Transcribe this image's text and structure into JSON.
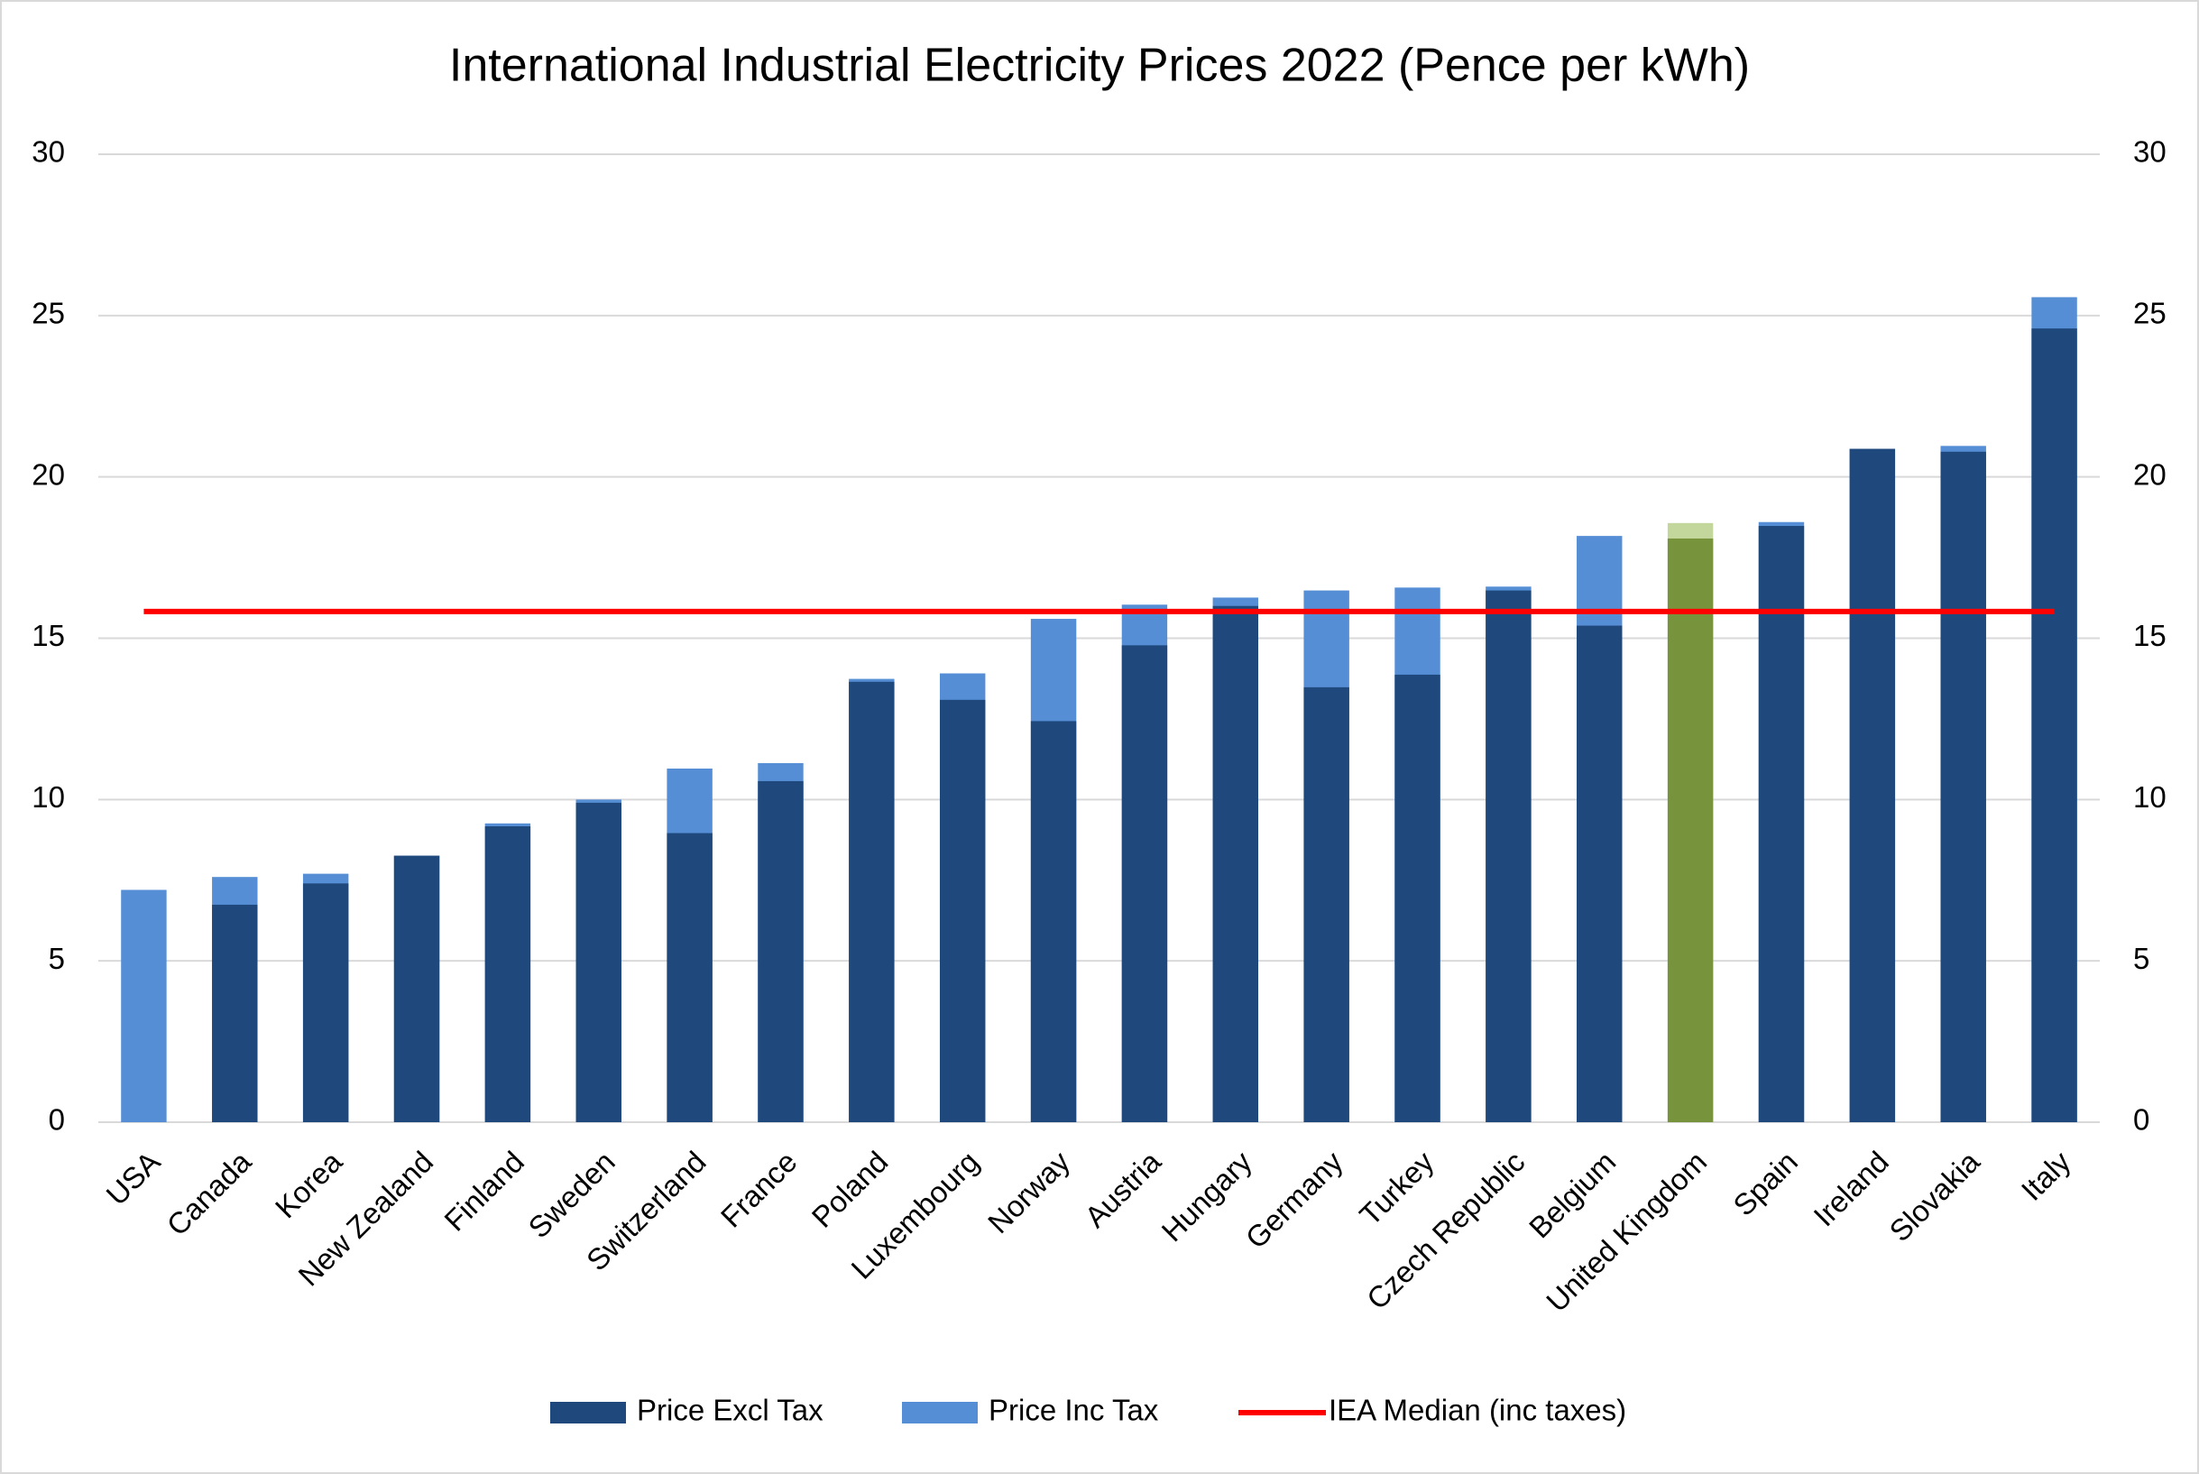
{
  "chart_data": {
    "type": "bar",
    "title": "International Industrial Electricity Prices 2022 (Pence per kWh)",
    "categories": [
      "USA",
      "Canada",
      "Korea",
      "New Zealand",
      "Finland",
      "Sweden",
      "Switzerland",
      "France",
      "Poland",
      "Luxembourg",
      "Norway",
      "Austria",
      "Hungary",
      "Germany",
      "Turkey",
      "Czech Republic",
      "Belgium",
      "United Kingdom",
      "Spain",
      "Ireland",
      "Slovakia",
      "Italy"
    ],
    "series": [
      {
        "name": "Price Inc Tax",
        "color": "#558ed5",
        "highlight_color": "#c3d69b",
        "values": [
          7.2,
          7.6,
          7.7,
          8.26,
          9.26,
          10.0,
          10.96,
          11.13,
          13.74,
          13.91,
          15.6,
          16.04,
          16.26,
          16.48,
          16.57,
          16.6,
          18.17,
          18.57,
          18.6,
          20.87,
          20.96,
          25.57
        ]
      },
      {
        "name": "Price Excl Tax",
        "color": "#1f497d",
        "highlight_color": "#77933c",
        "values": [
          null,
          6.74,
          7.4,
          8.26,
          9.17,
          9.9,
          8.96,
          10.57,
          13.65,
          13.09,
          12.43,
          14.78,
          16.0,
          13.48,
          13.87,
          16.48,
          15.39,
          18.09,
          18.48,
          20.87,
          20.78,
          24.6
        ]
      },
      {
        "name": "IEA Median (inc taxes)",
        "color": "#ff0000",
        "type": "line",
        "value": 15.83
      }
    ],
    "highlight_category": "United Kingdom",
    "ylim": [
      0,
      30
    ],
    "yticks": [
      0,
      5,
      10,
      15,
      20,
      25,
      30
    ],
    "y2lim": [
      0,
      30
    ],
    "y2ticks": [
      0,
      5,
      10,
      15,
      20,
      25,
      30
    ],
    "grid": true,
    "legend": "bottom"
  }
}
